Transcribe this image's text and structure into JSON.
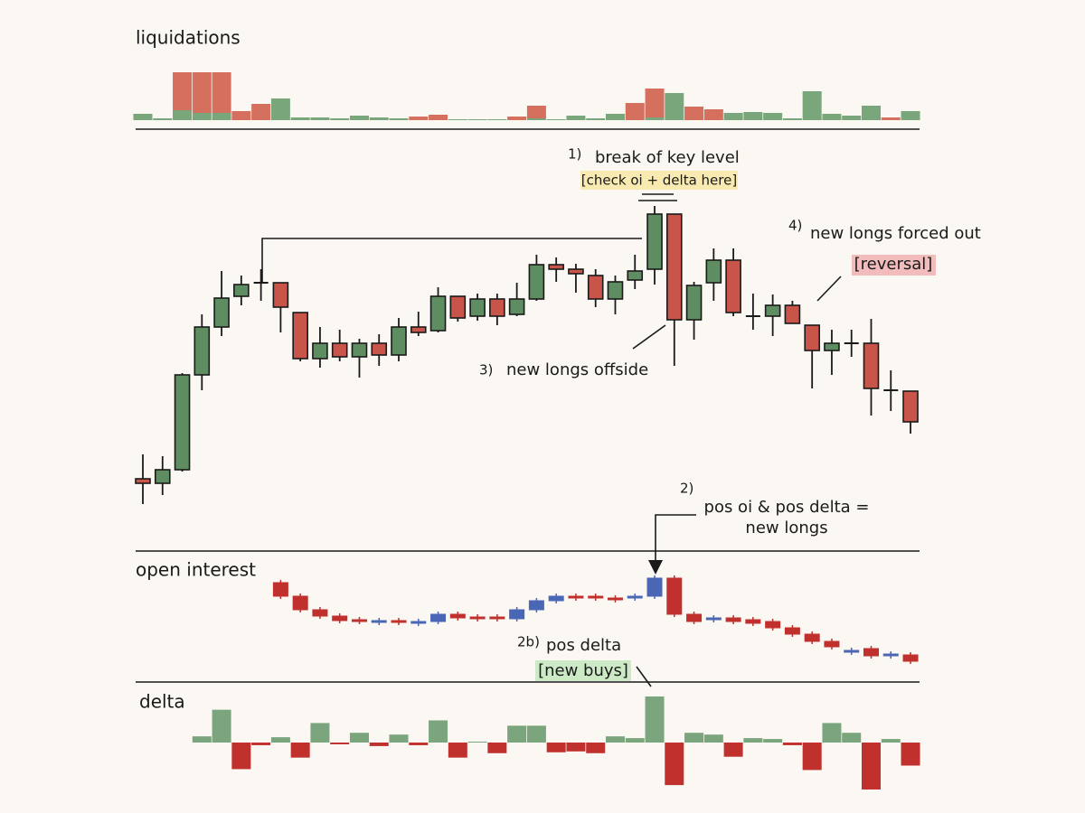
{
  "chart_data": [
    {
      "type": "stacked-bar",
      "title": "liquidations",
      "series": [
        {
          "color": "#7aa67b",
          "values": [
            7,
            2,
            11,
            8,
            8,
            0,
            0,
            24,
            3,
            3,
            2,
            5,
            3,
            2,
            0,
            0,
            1,
            1,
            1,
            0,
            2,
            1,
            5,
            2,
            7,
            0,
            3,
            30,
            0,
            0,
            8,
            9,
            8,
            2,
            32,
            7,
            5,
            16,
            0,
            10
          ]
        },
        {
          "color": "#d6705e",
          "values": [
            0,
            0,
            42,
            45,
            45,
            10,
            18,
            0,
            0,
            0,
            0,
            0,
            0,
            0,
            4,
            6,
            0,
            0,
            0,
            4,
            14,
            0,
            0,
            0,
            0,
            19,
            32,
            0,
            15,
            12,
            0,
            0,
            0,
            0,
            0,
            0,
            0,
            0,
            3,
            0
          ]
        }
      ]
    },
    {
      "type": "candlestick",
      "up_color": "#5f8d62",
      "down_color": "#c8544a",
      "open": [
        70,
        65,
        80,
        185,
        238,
        272,
        287,
        287,
        254,
        203,
        220,
        205,
        220,
        207,
        238,
        234,
        272,
        250,
        269,
        252,
        269,
        307,
        302,
        295,
        269,
        290,
        302,
        363,
        246,
        287,
        312,
        250,
        250,
        262,
        240,
        212,
        220,
        220,
        168,
        167
      ],
      "high": [
        97,
        95,
        187,
        252,
        300,
        295,
        302,
        287,
        254,
        238,
        235,
        225,
        230,
        248,
        255,
        282,
        272,
        275,
        275,
        287,
        318,
        315,
        308,
        302,
        295,
        318,
        372,
        363,
        288,
        325,
        325,
        275,
        274,
        267,
        240,
        235,
        235,
        247,
        190,
        167
      ],
      "low": [
        42,
        52,
        78,
        168,
        228,
        262,
        267,
        232,
        200,
        193,
        200,
        182,
        195,
        200,
        228,
        232,
        244,
        245,
        240,
        250,
        267,
        288,
        276,
        260,
        252,
        280,
        285,
        195,
        224,
        267,
        250,
        235,
        228,
        242,
        170,
        185,
        205,
        140,
        145,
        120
      ],
      "close": [
        65,
        80,
        185,
        238,
        270,
        285,
        287,
        260,
        203,
        220,
        205,
        220,
        207,
        238,
        232,
        272,
        248,
        269,
        250,
        269,
        307,
        302,
        297,
        269,
        288,
        300,
        363,
        246,
        284,
        312,
        254,
        250,
        262,
        242,
        212,
        220,
        220,
        170,
        168,
        133
      ]
    },
    {
      "type": "oi-candlestick",
      "title": "open interest",
      "up_color": "#4a67b5",
      "down_color": "#c0312e",
      "open": [
        null,
        null,
        null,
        null,
        null,
        null,
        null,
        105,
        90,
        75,
        68,
        64,
        63,
        63,
        62,
        62,
        70,
        67,
        67,
        65,
        75,
        85,
        90,
        90,
        88,
        88,
        90,
        110,
        70,
        66,
        66,
        64,
        62,
        55,
        48,
        40,
        30,
        32,
        26,
        25
      ],
      "close": [
        null,
        null,
        null,
        null,
        null,
        null,
        null,
        90,
        75,
        68,
        63,
        62,
        63,
        61,
        62,
        70,
        66,
        66,
        66,
        75,
        85,
        90,
        88,
        88,
        86,
        90,
        110,
        70,
        62,
        66,
        62,
        60,
        55,
        48,
        40,
        34,
        30,
        24,
        26,
        18
      ]
    },
    {
      "type": "bar",
      "title": "delta",
      "pos_color": "#7ba57c",
      "neg_color": "#c0312e",
      "values": [
        null,
        null,
        null,
        7,
        37,
        -30,
        -3,
        6,
        -17,
        22,
        -2,
        11,
        -4,
        9,
        -3,
        25,
        -17,
        1,
        -12,
        19,
        19,
        -11,
        -10,
        -12,
        7,
        5,
        52,
        -48,
        11,
        9,
        -16,
        5,
        4,
        -3,
        -31,
        22,
        11,
        -53,
        4,
        -26
      ]
    }
  ],
  "annotations": [
    "1)",
    "break of key level",
    "[check oi + delta here]",
    "2)",
    "pos oi & pos delta =",
    "new longs",
    "2b)",
    "pos delta",
    "[new buys]",
    "3)",
    "new longs offside",
    "4)",
    "new longs forced out",
    "[reversal]"
  ]
}
